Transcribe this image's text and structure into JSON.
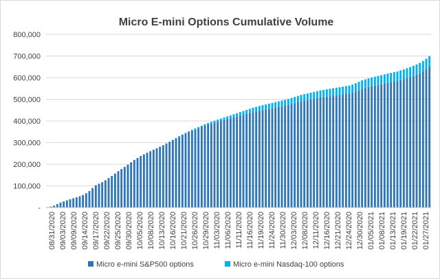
{
  "chart_data": {
    "type": "bar",
    "stacked": true,
    "title": "Micro E-mini Options Cumulative Volume",
    "xlabel": "",
    "ylabel": "",
    "ylim": [
      0,
      800000
    ],
    "y_ticks": [
      0,
      100000,
      200000,
      300000,
      400000,
      500000,
      600000,
      700000,
      800000
    ],
    "y_tick_labels": [
      "-",
      "100,000",
      "200,000",
      "300,000",
      "400,000",
      "500,000",
      "600,000",
      "700,000",
      "800,000"
    ],
    "grid": true,
    "legend_position": "bottom",
    "x_tick_labels": [
      "08/31/2020",
      "09/03/2020",
      "09/09/2020",
      "09/14/2020",
      "09/17/2020",
      "09/22/2020",
      "09/25/2020",
      "09/30/2020",
      "10/05/2020",
      "10/08/2020",
      "10/13/2020",
      "10/16/2020",
      "10/21/2020",
      "10/26/2020",
      "10/29/2020",
      "11/03/2020",
      "11/06/2020",
      "11/11/2020",
      "11/16/2020",
      "11/19/2020",
      "11/24/2020",
      "11/30/2020",
      "12/03/2020",
      "12/08/2020",
      "12/11/2020",
      "12/16/2020",
      "12/21/2020",
      "12/24/2020",
      "12/30/2020",
      "01/05/2021",
      "01/08/2021",
      "01/13/2021",
      "01/19/2021",
      "01/22/2021",
      "01/27/2021"
    ],
    "series": [
      {
        "name": "Micro e-mini S&P500 options",
        "color": "#2e75b6",
        "values": [
          2000,
          4000,
          9000,
          16000,
          23000,
          28000,
          33000,
          38000,
          43000,
          47000,
          52000,
          58000,
          66000,
          76000,
          90000,
          103000,
          110000,
          117000,
          126000,
          136000,
          146000,
          157000,
          168000,
          178000,
          188000,
          198000,
          209000,
          220000,
          229000,
          238000,
          246000,
          253000,
          260000,
          267000,
          274000,
          281000,
          288000,
          296000,
          304000,
          312000,
          320000,
          328000,
          335000,
          342000,
          349000,
          355000,
          361000,
          367000,
          373000,
          379000,
          384000,
          388000,
          392000,
          396000,
          400000,
          404000,
          408000,
          412000,
          416000,
          420000,
          424000,
          428000,
          432000,
          436000,
          440000,
          443000,
          446000,
          449000,
          452000,
          455000,
          458000,
          461000,
          464000,
          467000,
          470000,
          474000,
          478000,
          482000,
          486000,
          490000,
          493000,
          496000,
          499000,
          502000,
          505000,
          508000,
          510000,
          512000,
          514000,
          516000,
          518000,
          520000,
          522000,
          524000,
          526000,
          530000,
          536000,
          542000,
          548000,
          552000,
          556000,
          560000,
          563000,
          566000,
          569000,
          572000,
          575000,
          578000,
          581000,
          584000,
          588000,
          592000,
          597000,
          602000,
          607000,
          613000,
          620000,
          628000,
          638000,
          649000
        ]
      },
      {
        "name": "Micro e-mini Nasdaq-100 options",
        "color": "#00b0f0",
        "values": [
          0,
          0,
          0,
          0,
          0,
          0,
          0,
          0,
          0,
          0,
          0,
          0,
          0,
          0,
          0,
          0,
          0,
          0,
          0,
          0,
          0,
          0,
          0,
          0,
          0,
          0,
          0,
          0,
          0,
          0,
          0,
          0,
          0,
          0,
          0,
          0,
          0,
          0,
          0,
          1000,
          1500,
          2000,
          2500,
          3000,
          3500,
          4000,
          4500,
          5000,
          5500,
          6000,
          7000,
          8000,
          9000,
          10000,
          11000,
          12000,
          13000,
          14000,
          15000,
          16000,
          17000,
          18000,
          19000,
          20000,
          21000,
          22000,
          23000,
          24000,
          24500,
          25000,
          25500,
          26000,
          26500,
          27000,
          27500,
          28000,
          28500,
          29000,
          29500,
          30000,
          30500,
          31000,
          31500,
          32000,
          32500,
          33000,
          33500,
          34000,
          34500,
          35000,
          35500,
          36000,
          36500,
          37000,
          37500,
          38000,
          38500,
          39000,
          39500,
          40000,
          40500,
          41000,
          41500,
          42000,
          42500,
          43000,
          43500,
          44000,
          44500,
          45000,
          45500,
          46000,
          46500,
          47000,
          47500,
          48000,
          48500,
          49000,
          49500,
          50000
        ]
      }
    ]
  }
}
